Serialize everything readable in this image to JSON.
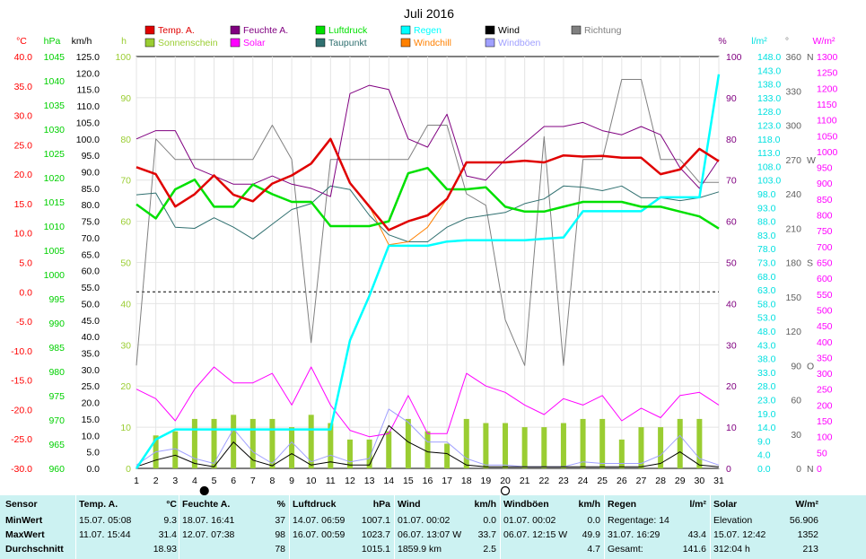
{
  "chart_data": {
    "type": "line",
    "title": "Juli 2016",
    "colors": {
      "temp": "#e00000",
      "humid": "#800080",
      "pressure": "#00e000",
      "rain": "#00ffff",
      "wind": "#000000",
      "dir": "#808080",
      "sun": "#9acd32",
      "solar": "#ff00ff",
      "dew": "#307070",
      "chill": "#ff8000",
      "gust": "#a0a0ff"
    },
    "legend": [
      {
        "label": "Temp. A.",
        "color": "#e00000"
      },
      {
        "label": "Feuchte A.",
        "color": "#800080"
      },
      {
        "label": "Luftdruck",
        "color": "#00e000"
      },
      {
        "label": "Regen",
        "color": "#00ffff"
      },
      {
        "label": "Wind",
        "color": "#000000"
      },
      {
        "label": "Richtung",
        "color": "#808080"
      },
      {
        "label": "Sonnenschein",
        "color": "#9acd32"
      },
      {
        "label": "Solar",
        "color": "#ff00ff"
      },
      {
        "label": "Taupunkt",
        "color": "#307070"
      },
      {
        "label": "Windchill",
        "color": "#ff8000"
      },
      {
        "label": "Windböen",
        "color": "#a0a0ff"
      }
    ],
    "axes": {
      "temp": {
        "unit": "°C",
        "min": -30,
        "max": 40,
        "ticks": [
          "40.0",
          "35.0",
          "30.0",
          "25.0",
          "20.0",
          "15.0",
          "10.0",
          "5.0",
          "0.0",
          "-5.0",
          "-10.0",
          "-15.0",
          "-20.0",
          "-25.0",
          "-30.0"
        ]
      },
      "pressure": {
        "unit": "hPa",
        "min": 960,
        "max": 1045,
        "ticks": [
          "1045",
          "1040",
          "1035",
          "1030",
          "1025",
          "1020",
          "1015",
          "1010",
          "1005",
          "1000",
          "995",
          "990",
          "985",
          "980",
          "975",
          "970",
          "965",
          "960"
        ]
      },
      "wind": {
        "unit": "km/h",
        "min": 0,
        "max": 125,
        "ticks": [
          "125.0",
          "120.0",
          "115.0",
          "110.0",
          "105.0",
          "100.0",
          "95.0",
          "90.0",
          "85.0",
          "80.0",
          "75.0",
          "70.0",
          "65.0",
          "60.0",
          "55.0",
          "50.0",
          "45.0",
          "40.0",
          "35.0",
          "30.0",
          "25.0",
          "20.0",
          "15.0",
          "10.0",
          "5.0",
          "0.0"
        ]
      },
      "sun": {
        "unit": "h",
        "min": 0,
        "max": 100,
        "ticks": [
          "100",
          "90",
          "80",
          "70",
          "60",
          "50",
          "40",
          "30",
          "20",
          "10",
          "0"
        ]
      },
      "humid": {
        "unit": "%",
        "min": 0,
        "max": 100,
        "ticks": [
          "100",
          "90",
          "80",
          "70",
          "60",
          "50",
          "40",
          "30",
          "20",
          "10",
          "0"
        ]
      },
      "rain": {
        "unit": "l/m²",
        "min": 0,
        "max": 148,
        "ticks": [
          "148.0",
          "143.0",
          "138.0",
          "133.0",
          "128.0",
          "123.0",
          "118.0",
          "113.0",
          "108.0",
          "103.0",
          "98.0",
          "93.0",
          "88.0",
          "83.0",
          "78.0",
          "73.0",
          "68.0",
          "63.0",
          "58.0",
          "53.0",
          "48.0",
          "43.0",
          "38.0",
          "33.0",
          "28.0",
          "23.0",
          "19.0",
          "14.0",
          "9.0",
          "4.0",
          "0.0"
        ]
      },
      "dir": {
        "unit": "°",
        "min": 0,
        "max": 360,
        "ticks": [
          {
            "v": "360",
            "c": "N"
          },
          {
            "v": "330",
            "c": ""
          },
          {
            "v": "300",
            "c": ""
          },
          {
            "v": "270",
            "c": "W"
          },
          {
            "v": "240",
            "c": ""
          },
          {
            "v": "210",
            "c": ""
          },
          {
            "v": "180",
            "c": "S"
          },
          {
            "v": "150",
            "c": ""
          },
          {
            "v": "120",
            "c": ""
          },
          {
            "v": "90",
            "c": "O"
          },
          {
            "v": "60",
            "c": ""
          },
          {
            "v": "30",
            "c": ""
          },
          {
            "v": "0",
            "c": "N"
          }
        ]
      },
      "solar": {
        "unit": "W/m²",
        "min": 0,
        "max": 1300,
        "ticks": [
          "1300",
          "1250",
          "1200",
          "1150",
          "1100",
          "1050",
          "1000",
          "950",
          "900",
          "850",
          "800",
          "750",
          "700",
          "650",
          "600",
          "550",
          "500",
          "450",
          "400",
          "350",
          "300",
          "250",
          "200",
          "150",
          "100",
          "50",
          "0"
        ]
      }
    },
    "x": [
      1,
      2,
      3,
      4,
      5,
      6,
      7,
      8,
      9,
      10,
      11,
      12,
      13,
      14,
      15,
      16,
      17,
      18,
      19,
      20,
      21,
      22,
      23,
      24,
      25,
      26,
      27,
      28,
      29,
      30,
      31
    ],
    "series": [
      {
        "name": "Temp. A.",
        "key": "temp",
        "axis": "temp",
        "values": [
          21.2,
          20.0,
          14.5,
          16.6,
          19.8,
          16.5,
          15.4,
          18.4,
          19.8,
          21.8,
          26.0,
          18.5,
          14.5,
          10.5,
          12.0,
          13.0,
          15.8,
          22.0,
          22.0,
          22.0,
          22.3,
          22.0,
          23.2,
          23.0,
          23.1,
          22.8,
          22.8,
          20.0,
          20.8,
          24.3,
          22.2
        ]
      },
      {
        "name": "Feuchte A.",
        "key": "humid",
        "axis": "humid",
        "values": [
          80,
          82,
          82,
          73,
          71,
          69,
          69,
          71,
          69,
          68,
          66,
          91,
          93,
          92,
          80,
          78,
          86,
          71,
          70,
          75,
          79,
          83,
          83,
          84,
          82,
          81,
          83,
          81,
          73,
          68,
          75
        ]
      },
      {
        "name": "Luftdruck",
        "key": "pressure",
        "axis": "pressure",
        "values": [
          1014.5,
          1011.6,
          1017.6,
          1019.6,
          1014.0,
          1014.0,
          1018.6,
          1016.6,
          1015.0,
          1015.0,
          1010.0,
          1010.0,
          1010.0,
          1011.0,
          1020.9,
          1022.0,
          1017.6,
          1017.6,
          1018.0,
          1014.0,
          1013.0,
          1013.0,
          1014.0,
          1015.0,
          1015.0,
          1015.0,
          1014.0,
          1014.0,
          1013.0,
          1012.0,
          1009.5
        ]
      },
      {
        "name": "Regen",
        "key": "rain",
        "axis": "rain",
        "values": [
          0,
          10.4,
          14.0,
          14.0,
          14.0,
          14.0,
          14.0,
          14.0,
          14.0,
          14.0,
          14.0,
          46.0,
          62.0,
          80.0,
          80.0,
          80.0,
          81.5,
          82.0,
          82.0,
          82.0,
          82.0,
          82.5,
          83.0,
          92.4,
          92.4,
          92.4,
          92.4,
          97.4,
          97.4,
          97.4,
          141.6
        ]
      },
      {
        "name": "Wind",
        "key": "wind",
        "axis": "wind",
        "values": [
          0.5,
          2.5,
          4.0,
          1.5,
          0.5,
          8.0,
          2.5,
          0.8,
          4.5,
          1.0,
          2.0,
          1.0,
          1.0,
          13.0,
          8.0,
          5.0,
          4.5,
          1.0,
          0.5,
          0.5,
          0.5,
          0.5,
          0.5,
          0.5,
          0.5,
          0.5,
          0.5,
          1.5,
          5.0,
          1.0,
          0.5
        ]
      },
      {
        "name": "Windböen",
        "key": "gust",
        "axis": "wind",
        "values": [
          1.0,
          5.0,
          6.0,
          3.0,
          1.5,
          12.0,
          5.0,
          1.5,
          8.0,
          2.0,
          4.0,
          2.0,
          3.0,
          18.0,
          14.0,
          8.0,
          8.0,
          3.0,
          1.0,
          1.0,
          0.5,
          0.5,
          0.5,
          2.0,
          1.5,
          1.5,
          1.5,
          4.0,
          10.0,
          3.0,
          1.0
        ]
      },
      {
        "name": "Richtung",
        "key": "dir",
        "axis": "dir",
        "values": [
          90,
          288,
          270,
          270,
          270,
          270,
          270,
          300,
          270,
          110,
          270,
          270,
          270,
          270,
          270,
          300,
          300,
          240,
          230,
          130,
          90,
          290,
          90,
          270,
          270,
          340,
          340,
          270,
          270,
          250,
          250
        ]
      },
      {
        "name": "Solar",
        "key": "solar",
        "axis": "solar",
        "values": [
          250,
          220,
          150,
          250,
          320,
          270,
          270,
          300,
          200,
          320,
          200,
          120,
          100,
          110,
          230,
          110,
          110,
          300,
          260,
          240,
          200,
          170,
          220,
          200,
          230,
          150,
          190,
          160,
          230,
          240,
          200
        ]
      },
      {
        "name": "Taupunkt",
        "key": "dew",
        "axis": "temp",
        "values": [
          16.5,
          16.8,
          11.0,
          10.8,
          12.6,
          11.0,
          9.0,
          11.5,
          14.0,
          15.0,
          18.0,
          17.4,
          13.0,
          9.7,
          8.5,
          8.5,
          11.0,
          12.5,
          13.0,
          13.5,
          15.0,
          15.8,
          18.0,
          17.8,
          17.2,
          18.0,
          16.0,
          16.0,
          15.5,
          16.0,
          17.0
        ]
      },
      {
        "name": "Windchill",
        "key": "chill",
        "axis": "temp",
        "values": [
          21.2,
          20.0,
          14.5,
          16.6,
          19.8,
          16.5,
          15.4,
          18.4,
          19.8,
          21.8,
          26.0,
          18.5,
          14.5,
          8.0,
          8.5,
          11.0,
          15.8,
          22.0,
          22.0,
          22.0,
          22.3,
          22.0,
          23.2,
          23.0,
          23.1,
          22.8,
          22.8,
          20.0,
          20.8,
          24.3,
          22.2
        ]
      },
      {
        "name": "Sonnenschein",
        "key": "sun",
        "axis": "sun",
        "type": "bar",
        "values": [
          0,
          8,
          9,
          12,
          12,
          13,
          12,
          12,
          10,
          13,
          11,
          7,
          7,
          9,
          12,
          9,
          6,
          12,
          11,
          11,
          10,
          10,
          11,
          12,
          12,
          7,
          10,
          10,
          12,
          12,
          0
        ]
      }
    ],
    "moon": [
      {
        "day": 4.5,
        "phase": "new"
      },
      {
        "day": 20,
        "phase": "full"
      }
    ]
  },
  "summary": {
    "row_labels": [
      "Sensor",
      "MinWert",
      "MaxWert",
      "Durchschnitt"
    ],
    "columns": [
      {
        "name": "Temp. A.",
        "unit": "°C",
        "min_when": "15.07. 05:08",
        "min": "9.3",
        "max_when": "11.07. 15:44",
        "max": "31.4",
        "avg_pre": "",
        "avg": "18.93"
      },
      {
        "name": "Feuchte A.",
        "unit": "%",
        "min_when": "18.07. 16:41",
        "min": "37",
        "max_when": "12.07. 07:38",
        "max": "98",
        "avg_pre": "",
        "avg": "78"
      },
      {
        "name": "Luftdruck",
        "unit": "hPa",
        "min_when": "14.07. 06:59",
        "min": "1007.1",
        "max_when": "16.07. 00:59",
        "max": "1023.7",
        "avg_pre": "",
        "avg": "1015.1"
      },
      {
        "name": "Wind",
        "unit": "km/h",
        "min_when": "01.07. 00:02",
        "min": "0.0",
        "max_when": "06.07. 13:07 W",
        "max": "33.7",
        "avg_pre": "1859.9 km",
        "avg": "2.5"
      },
      {
        "name": "Windböen",
        "unit": "km/h",
        "min_when": "01.07. 00:02",
        "min": "0.0",
        "max_when": "06.07. 12:15 W",
        "max": "49.9",
        "avg_pre": "",
        "avg": "4.7"
      },
      {
        "name": "Regen",
        "unit": "l/m²",
        "min_when": "Regentage: 14",
        "min": "",
        "max_when": "31.07. 16:29",
        "max": "43.4",
        "avg_pre": "Gesamt:",
        "avg": "141.6"
      },
      {
        "name": "Solar",
        "unit": "W/m²",
        "min_when": "Elevation",
        "min": "56.906",
        "max_when": "15.07. 12:42",
        "max": "1352",
        "avg_pre": "312:04 h",
        "avg": "213"
      }
    ]
  }
}
